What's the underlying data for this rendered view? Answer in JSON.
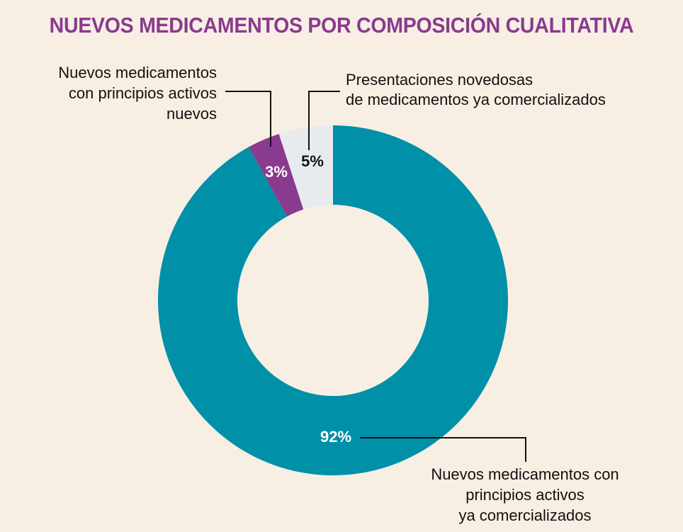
{
  "chart_data": {
    "type": "pie",
    "title": "NUEVOS MEDICAMENTOS POR COMPOSICIÓN CUALITATIVA",
    "donut": true,
    "slices": [
      {
        "label_lines": [
          "Presentaciones novedosas",
          "de medicamentos ya comercializados"
        ],
        "value": 5,
        "value_label": "5%",
        "color": "#e8ebee",
        "value_label_color": "#111111"
      },
      {
        "label_lines": [
          "Nuevos medicamentos con",
          "principios activos",
          "ya comercializados"
        ],
        "value": 92,
        "value_label": "92%",
        "color": "#0090a8",
        "value_label_color": "#ffffff"
      },
      {
        "label_lines": [
          "Nuevos medicamentos",
          "con principios activos",
          "nuevos"
        ],
        "value": 3,
        "value_label": "3%",
        "color": "#8a3a8f",
        "value_label_color": "#ffffff"
      }
    ]
  },
  "colors": {
    "background": "#f7efe3",
    "title": "#8a3a8f",
    "leader_line": "#111111"
  }
}
